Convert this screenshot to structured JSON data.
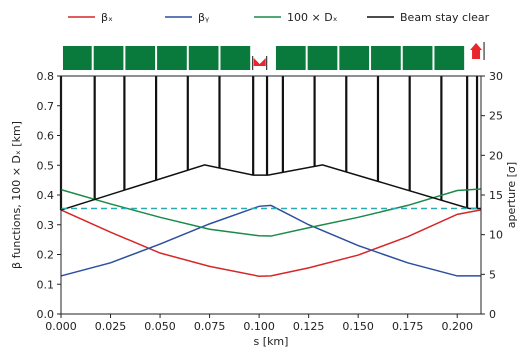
{
  "chart_data": {
    "type": "line",
    "xlabel": "s [km]",
    "ylabel_left": "β functions, 100 × Dₓ [km]",
    "ylabel_right": "aperture [σ]",
    "xlim": [
      0.0,
      0.212
    ],
    "ylim_left": [
      0.0,
      0.8
    ],
    "ylim_right": [
      0,
      30
    ],
    "xticks": [
      "0.000",
      "0.025",
      "0.050",
      "0.075",
      "0.100",
      "0.125",
      "0.150",
      "0.175",
      "0.200"
    ],
    "yticks_left": [
      "0.0",
      "0.1",
      "0.2",
      "0.3",
      "0.4",
      "0.5",
      "0.6",
      "0.7",
      "0.8"
    ],
    "yticks_right": [
      "0",
      "5",
      "10",
      "15",
      "20",
      "25",
      "30"
    ],
    "legend": {
      "placement": "top",
      "entries": [
        {
          "label": "βₓ",
          "color": "#d62728"
        },
        {
          "label": "βᵧ",
          "color": "#2c4fa0"
        },
        {
          "label": "100 × Dₓ",
          "color": "#1a8a4a"
        },
        {
          "label": "Beam stay clear",
          "color": "#111111"
        }
      ]
    },
    "series": [
      {
        "key": "beta_x",
        "color": "#d62728",
        "x": [
          0.0,
          0.025,
          0.05,
          0.075,
          0.1,
          0.106,
          0.125,
          0.15,
          0.175,
          0.2,
          0.212
        ],
        "values": [
          0.35,
          0.275,
          0.205,
          0.16,
          0.127,
          0.128,
          0.155,
          0.198,
          0.26,
          0.335,
          0.35
        ]
      },
      {
        "key": "beta_y",
        "color": "#2c4fa0",
        "x": [
          0.0,
          0.025,
          0.05,
          0.075,
          0.1,
          0.106,
          0.125,
          0.15,
          0.175,
          0.2,
          0.212
        ],
        "values": [
          0.128,
          0.172,
          0.235,
          0.303,
          0.362,
          0.365,
          0.3,
          0.23,
          0.172,
          0.128,
          0.128
        ]
      },
      {
        "key": "dispersion_x100",
        "color": "#1a8a4a",
        "x": [
          0.0,
          0.025,
          0.05,
          0.075,
          0.1,
          0.106,
          0.125,
          0.15,
          0.175,
          0.2,
          0.212
        ],
        "values": [
          0.418,
          0.37,
          0.325,
          0.285,
          0.263,
          0.262,
          0.29,
          0.325,
          0.365,
          0.415,
          0.42
        ]
      },
      {
        "key": "beam_stay_clear",
        "color": "#111111",
        "axis": "right",
        "x": [
          0.0,
          0.0725,
          0.097,
          0.1045,
          0.132,
          0.206,
          0.212
        ],
        "values": [
          13.1,
          18.8,
          17.5,
          17.5,
          18.8,
          13.3,
          13.3
        ]
      },
      {
        "key": "aperture_limit",
        "color": "#2aaab0",
        "dashed": true,
        "axis": "right",
        "x": [
          0.0,
          0.212
        ],
        "values": [
          13.3,
          13.3
        ]
      }
    ],
    "aperture_spikes_s": [
      0.0,
      0.017,
      0.032,
      0.048,
      0.064,
      0.08,
      0.097,
      0.104,
      0.112,
      0.128,
      0.144,
      0.16,
      0.176,
      0.192,
      0.205,
      0.21
    ],
    "magnet_blocks": {
      "color": "#0a7a3c",
      "dipoles": [
        [
          0.001,
          0.0155
        ],
        [
          0.0165,
          0.0315
        ],
        [
          0.0325,
          0.0475
        ],
        [
          0.0485,
          0.0635
        ],
        [
          0.0645,
          0.0795
        ],
        [
          0.0805,
          0.0955
        ],
        [
          0.1085,
          0.1235
        ],
        [
          0.1245,
          0.1395
        ],
        [
          0.1405,
          0.1555
        ],
        [
          0.1565,
          0.1715
        ],
        [
          0.1725,
          0.1875
        ],
        [
          0.1885,
          0.2035
        ]
      ],
      "markers": [
        {
          "s": 0.1003,
          "color": "#e8262b",
          "shape": "notch"
        },
        {
          "s": 0.2095,
          "color": "#e8262b",
          "shape": "arrow-up"
        }
      ]
    }
  }
}
